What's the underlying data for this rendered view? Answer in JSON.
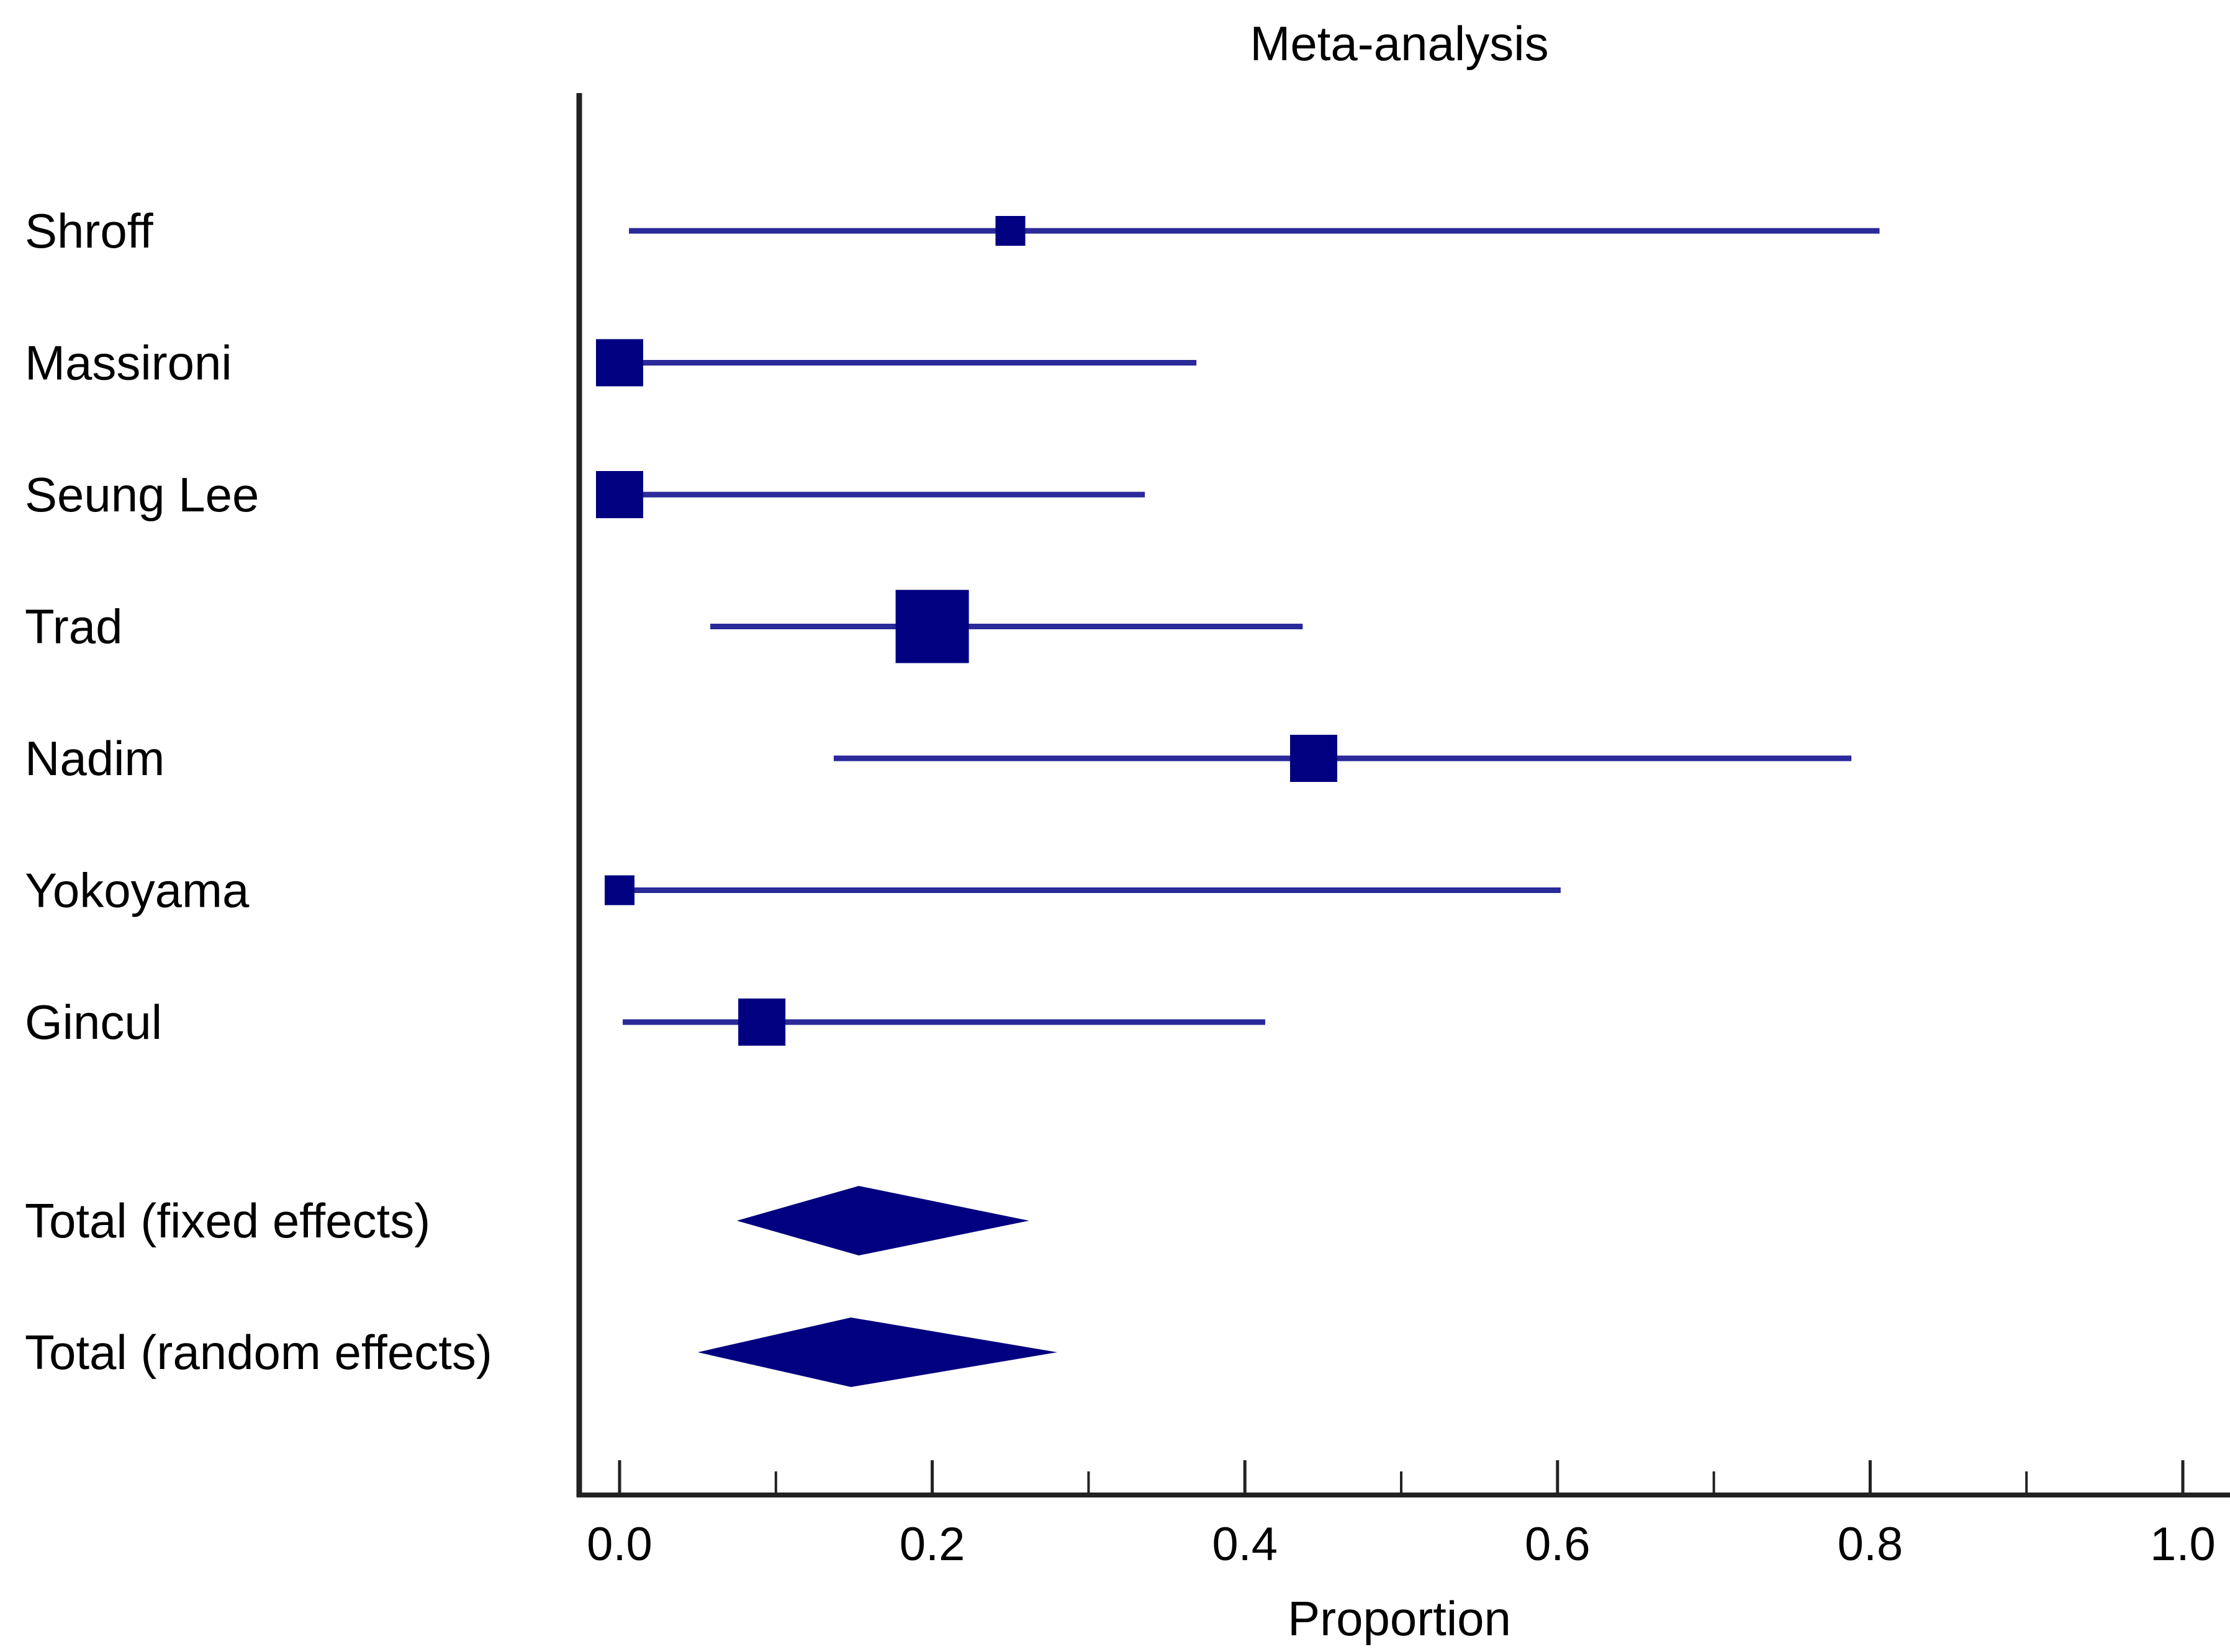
{
  "chart_data": {
    "type": "forest",
    "title": "Meta-analysis",
    "xlabel": "Proportion",
    "xlim": [
      -0.03,
      1.03
    ],
    "xticks": [
      "0.0",
      "0.2",
      "0.4",
      "0.6",
      "0.8",
      "1.0"
    ],
    "xtick_values": [
      0.0,
      0.2,
      0.4,
      0.6,
      0.8,
      1.0
    ],
    "minor_tick_step": 0.1,
    "grid": false,
    "colors": {
      "marker": "#000080",
      "ci_line": "#2a2a9a",
      "axis": "#222222"
    },
    "studies": [
      {
        "label": "Shroff",
        "estimate": 0.25,
        "ci": [
          0.006,
          0.806
        ],
        "weight": "small"
      },
      {
        "label": "Massironi",
        "estimate": 0.0,
        "ci": [
          0.0,
          0.369
        ],
        "weight": "medium"
      },
      {
        "label": "Seung Lee",
        "estimate": 0.0,
        "ci": [
          0.0,
          0.336
        ],
        "weight": "medium"
      },
      {
        "label": "Trad",
        "estimate": 0.2,
        "ci": [
          0.058,
          0.437
        ],
        "weight": "large"
      },
      {
        "label": "Nadim",
        "estimate": 0.444,
        "ci": [
          0.137,
          0.788
        ],
        "weight": "medium"
      },
      {
        "label": "Yokoyama",
        "estimate": 0.0,
        "ci": [
          0.0,
          0.602
        ],
        "weight": "small"
      },
      {
        "label": "Gincul",
        "estimate": 0.091,
        "ci": [
          0.002,
          0.413
        ],
        "weight": "medium"
      }
    ],
    "totals": [
      {
        "label": "Total (fixed effects)",
        "estimate": 0.153,
        "ci": [
          0.075,
          0.262
        ]
      },
      {
        "label": "Total (random effects)",
        "estimate": 0.148,
        "ci": [
          0.05,
          0.28
        ]
      }
    ]
  }
}
